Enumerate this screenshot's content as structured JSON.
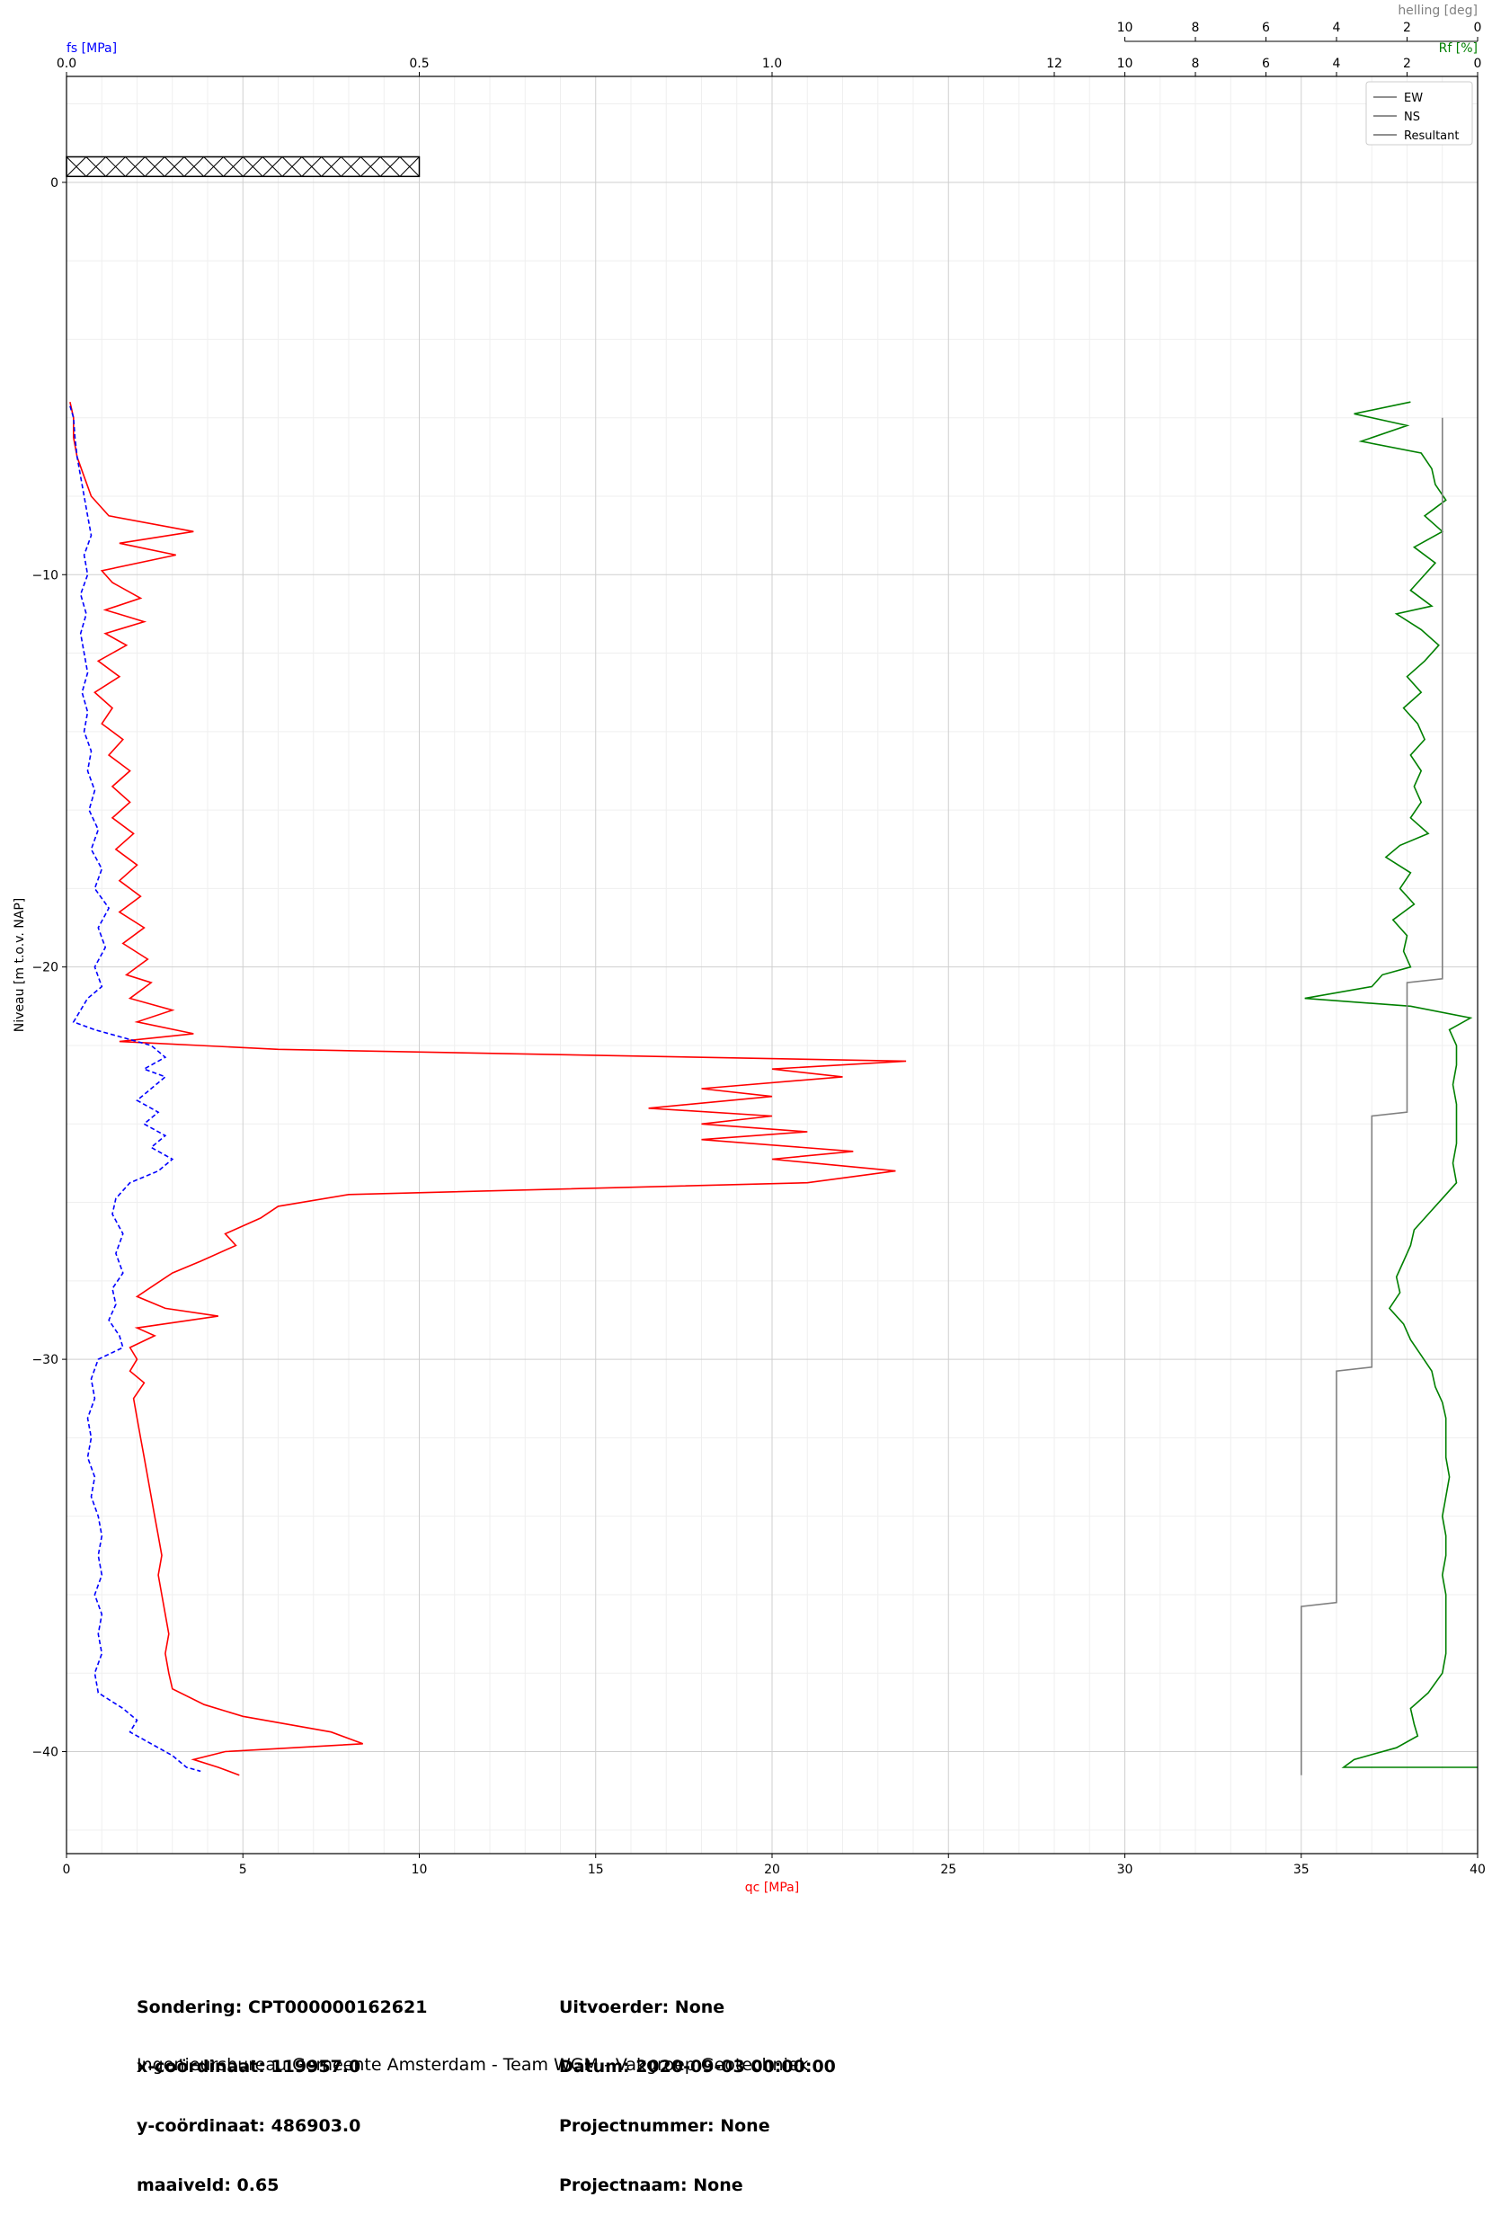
{
  "chart_data": {
    "type": "line",
    "ylabel": "Niveau [m t.o.v. NAP]",
    "ylim": [
      -42.6,
      2.7
    ],
    "yticks": [
      0,
      -10,
      -20,
      -30,
      -40
    ],
    "qc_axis": {
      "label": "qc [MPa]",
      "range": [
        0,
        40
      ],
      "ticks": [
        0,
        5,
        10,
        15,
        20,
        25,
        30,
        35,
        40
      ],
      "color": "#ff0000"
    },
    "fs_axis": {
      "label": "fs [MPa]",
      "range": [
        0,
        2.0
      ],
      "ticks": [
        0.0,
        0.5,
        1.0
      ],
      "tick_labels": [
        "0.0",
        "0.5",
        "1.0"
      ],
      "color": "#0000ff"
    },
    "rf_axis": {
      "label": "Rf [%]",
      "range": [
        40,
        0
      ],
      "ticks": [
        12,
        10,
        8,
        6,
        4,
        2,
        0
      ],
      "color": "#008000"
    },
    "helling_axis": {
      "label": "helling [deg]",
      "range": [
        10,
        0
      ],
      "ticks": [
        10,
        8,
        6,
        4,
        2,
        0
      ],
      "color": "#808080"
    },
    "legend": {
      "placement": "top-right",
      "entries": [
        "EW",
        "NS",
        "Resultant"
      ]
    },
    "grid": true,
    "maaiveld": 0.65,
    "series": [
      {
        "name": "qc",
        "color": "#ff0000",
        "style": "solid",
        "points": [
          [
            0.1,
            -5.6
          ],
          [
            0.2,
            -6.0
          ],
          [
            0.2,
            -6.5
          ],
          [
            0.3,
            -7.0
          ],
          [
            0.5,
            -7.5
          ],
          [
            0.7,
            -8.0
          ],
          [
            1.2,
            -8.5
          ],
          [
            3.6,
            -8.9
          ],
          [
            1.5,
            -9.2
          ],
          [
            3.1,
            -9.5
          ],
          [
            1.0,
            -9.9
          ],
          [
            1.3,
            -10.2
          ],
          [
            2.1,
            -10.6
          ],
          [
            1.1,
            -10.9
          ],
          [
            2.2,
            -11.2
          ],
          [
            1.1,
            -11.5
          ],
          [
            1.7,
            -11.8
          ],
          [
            0.9,
            -12.2
          ],
          [
            1.5,
            -12.6
          ],
          [
            0.8,
            -13.0
          ],
          [
            1.3,
            -13.4
          ],
          [
            1.0,
            -13.8
          ],
          [
            1.6,
            -14.2
          ],
          [
            1.2,
            -14.6
          ],
          [
            1.8,
            -15.0
          ],
          [
            1.3,
            -15.4
          ],
          [
            1.8,
            -15.8
          ],
          [
            1.3,
            -16.2
          ],
          [
            1.9,
            -16.6
          ],
          [
            1.4,
            -17.0
          ],
          [
            2.0,
            -17.4
          ],
          [
            1.5,
            -17.8
          ],
          [
            2.1,
            -18.2
          ],
          [
            1.5,
            -18.6
          ],
          [
            2.2,
            -19.0
          ],
          [
            1.6,
            -19.4
          ],
          [
            2.3,
            -19.8
          ],
          [
            1.7,
            -20.2
          ],
          [
            2.4,
            -20.4
          ],
          [
            1.8,
            -20.8
          ],
          [
            3.0,
            -21.1
          ],
          [
            2.0,
            -21.4
          ],
          [
            3.6,
            -21.7
          ],
          [
            1.5,
            -21.9
          ],
          [
            6.0,
            -22.1
          ],
          [
            23.8,
            -22.4
          ],
          [
            20.0,
            -22.6
          ],
          [
            22.0,
            -22.8
          ],
          [
            18.0,
            -23.1
          ],
          [
            20.0,
            -23.3
          ],
          [
            16.5,
            -23.6
          ],
          [
            20.0,
            -23.8
          ],
          [
            18.0,
            -24.0
          ],
          [
            21.0,
            -24.2
          ],
          [
            18.0,
            -24.4
          ],
          [
            22.3,
            -24.7
          ],
          [
            20.0,
            -24.9
          ],
          [
            23.5,
            -25.2
          ],
          [
            21.0,
            -25.5
          ],
          [
            8.0,
            -25.8
          ],
          [
            6.0,
            -26.1
          ],
          [
            5.5,
            -26.4
          ],
          [
            4.5,
            -26.8
          ],
          [
            4.8,
            -27.1
          ],
          [
            3.8,
            -27.5
          ],
          [
            3.0,
            -27.8
          ],
          [
            2.5,
            -28.1
          ],
          [
            2.0,
            -28.4
          ],
          [
            2.8,
            -28.7
          ],
          [
            4.3,
            -28.9
          ],
          [
            2.0,
            -29.2
          ],
          [
            2.5,
            -29.4
          ],
          [
            1.8,
            -29.7
          ],
          [
            2.0,
            -30.0
          ],
          [
            1.8,
            -30.3
          ],
          [
            2.2,
            -30.6
          ],
          [
            1.9,
            -31.0
          ],
          [
            2.0,
            -31.5
          ],
          [
            2.1,
            -32.0
          ],
          [
            2.2,
            -32.5
          ],
          [
            2.3,
            -33.0
          ],
          [
            2.4,
            -33.5
          ],
          [
            2.5,
            -34.0
          ],
          [
            2.6,
            -34.5
          ],
          [
            2.7,
            -35.0
          ],
          [
            2.6,
            -35.5
          ],
          [
            2.7,
            -36.0
          ],
          [
            2.8,
            -36.5
          ],
          [
            2.9,
            -37.0
          ],
          [
            2.8,
            -37.5
          ],
          [
            2.9,
            -38.0
          ],
          [
            3.0,
            -38.4
          ],
          [
            3.9,
            -38.8
          ],
          [
            5.0,
            -39.1
          ],
          [
            7.5,
            -39.5
          ],
          [
            8.4,
            -39.8
          ],
          [
            4.5,
            -40.0
          ],
          [
            3.6,
            -40.2
          ],
          [
            4.3,
            -40.4
          ],
          [
            4.9,
            -40.6
          ]
        ]
      },
      {
        "name": "fs",
        "color": "#0000ff",
        "style": "dashed",
        "points": [
          [
            0.005,
            -5.7
          ],
          [
            0.01,
            -6.0
          ],
          [
            0.012,
            -6.5
          ],
          [
            0.015,
            -7.0
          ],
          [
            0.02,
            -7.5
          ],
          [
            0.025,
            -8.0
          ],
          [
            0.03,
            -8.5
          ],
          [
            0.035,
            -9.0
          ],
          [
            0.025,
            -9.5
          ],
          [
            0.03,
            -10.0
          ],
          [
            0.02,
            -10.5
          ],
          [
            0.028,
            -11.0
          ],
          [
            0.02,
            -11.5
          ],
          [
            0.025,
            -12.0
          ],
          [
            0.03,
            -12.5
          ],
          [
            0.022,
            -13.0
          ],
          [
            0.03,
            -13.5
          ],
          [
            0.025,
            -14.0
          ],
          [
            0.035,
            -14.5
          ],
          [
            0.03,
            -15.0
          ],
          [
            0.04,
            -15.5
          ],
          [
            0.032,
            -16.0
          ],
          [
            0.045,
            -16.5
          ],
          [
            0.035,
            -17.0
          ],
          [
            0.05,
            -17.5
          ],
          [
            0.04,
            -18.0
          ],
          [
            0.06,
            -18.5
          ],
          [
            0.045,
            -19.0
          ],
          [
            0.055,
            -19.5
          ],
          [
            0.04,
            -20.0
          ],
          [
            0.05,
            -20.5
          ],
          [
            0.03,
            -20.8
          ],
          [
            0.02,
            -21.1
          ],
          [
            0.01,
            -21.4
          ],
          [
            0.04,
            -21.6
          ],
          [
            0.08,
            -21.8
          ],
          [
            0.12,
            -22.0
          ],
          [
            0.14,
            -22.3
          ],
          [
            0.11,
            -22.6
          ],
          [
            0.14,
            -22.8
          ],
          [
            0.12,
            -23.1
          ],
          [
            0.1,
            -23.4
          ],
          [
            0.13,
            -23.7
          ],
          [
            0.11,
            -24.0
          ],
          [
            0.14,
            -24.3
          ],
          [
            0.12,
            -24.6
          ],
          [
            0.15,
            -24.9
          ],
          [
            0.13,
            -25.2
          ],
          [
            0.09,
            -25.5
          ],
          [
            0.07,
            -25.9
          ],
          [
            0.065,
            -26.3
          ],
          [
            0.08,
            -26.8
          ],
          [
            0.07,
            -27.3
          ],
          [
            0.08,
            -27.8
          ],
          [
            0.065,
            -28.2
          ],
          [
            0.07,
            -28.6
          ],
          [
            0.06,
            -29.0
          ],
          [
            0.075,
            -29.4
          ],
          [
            0.08,
            -29.7
          ],
          [
            0.045,
            -30.0
          ],
          [
            0.035,
            -30.5
          ],
          [
            0.04,
            -31.0
          ],
          [
            0.03,
            -31.5
          ],
          [
            0.035,
            -32.0
          ],
          [
            0.03,
            -32.5
          ],
          [
            0.04,
            -33.0
          ],
          [
            0.035,
            -33.5
          ],
          [
            0.045,
            -34.0
          ],
          [
            0.05,
            -34.5
          ],
          [
            0.045,
            -35.0
          ],
          [
            0.05,
            -35.5
          ],
          [
            0.04,
            -36.0
          ],
          [
            0.05,
            -36.5
          ],
          [
            0.045,
            -37.0
          ],
          [
            0.05,
            -37.5
          ],
          [
            0.04,
            -38.0
          ],
          [
            0.045,
            -38.5
          ],
          [
            0.08,
            -38.9
          ],
          [
            0.1,
            -39.2
          ],
          [
            0.09,
            -39.5
          ],
          [
            0.12,
            -39.8
          ],
          [
            0.15,
            -40.1
          ],
          [
            0.17,
            -40.4
          ],
          [
            0.19,
            -40.5
          ]
        ]
      },
      {
        "name": "Rf",
        "color": "#008000",
        "style": "solid",
        "points": [
          [
            1.9,
            -5.6
          ],
          [
            3.5,
            -5.9
          ],
          [
            2.0,
            -6.2
          ],
          [
            3.3,
            -6.6
          ],
          [
            1.6,
            -6.9
          ],
          [
            1.3,
            -7.3
          ],
          [
            1.2,
            -7.7
          ],
          [
            0.9,
            -8.1
          ],
          [
            1.5,
            -8.5
          ],
          [
            1.0,
            -8.9
          ],
          [
            1.8,
            -9.3
          ],
          [
            1.2,
            -9.7
          ],
          [
            1.6,
            -10.1
          ],
          [
            1.9,
            -10.4
          ],
          [
            1.3,
            -10.8
          ],
          [
            2.3,
            -11.0
          ],
          [
            1.6,
            -11.4
          ],
          [
            1.1,
            -11.8
          ],
          [
            1.5,
            -12.2
          ],
          [
            2.0,
            -12.6
          ],
          [
            1.6,
            -13.0
          ],
          [
            2.1,
            -13.4
          ],
          [
            1.7,
            -13.8
          ],
          [
            1.5,
            -14.2
          ],
          [
            1.9,
            -14.6
          ],
          [
            1.6,
            -15.0
          ],
          [
            1.8,
            -15.4
          ],
          [
            1.6,
            -15.8
          ],
          [
            1.9,
            -16.2
          ],
          [
            1.4,
            -16.6
          ],
          [
            2.2,
            -16.9
          ],
          [
            2.6,
            -17.2
          ],
          [
            1.9,
            -17.6
          ],
          [
            2.2,
            -18.0
          ],
          [
            1.8,
            -18.4
          ],
          [
            2.4,
            -18.8
          ],
          [
            2.0,
            -19.2
          ],
          [
            2.1,
            -19.6
          ],
          [
            1.9,
            -20.0
          ],
          [
            2.7,
            -20.2
          ],
          [
            3.0,
            -20.5
          ],
          [
            4.9,
            -20.8
          ],
          [
            1.9,
            -21.0
          ],
          [
            0.2,
            -21.3
          ],
          [
            0.8,
            -21.6
          ],
          [
            0.6,
            -22.0
          ],
          [
            0.6,
            -22.5
          ],
          [
            0.7,
            -23.0
          ],
          [
            0.6,
            -23.5
          ],
          [
            0.6,
            -24.0
          ],
          [
            0.6,
            -24.5
          ],
          [
            0.7,
            -25.0
          ],
          [
            0.6,
            -25.5
          ],
          [
            1.0,
            -25.9
          ],
          [
            1.4,
            -26.3
          ],
          [
            1.8,
            -26.7
          ],
          [
            1.9,
            -27.1
          ],
          [
            2.1,
            -27.5
          ],
          [
            2.3,
            -27.9
          ],
          [
            2.2,
            -28.3
          ],
          [
            2.5,
            -28.7
          ],
          [
            2.1,
            -29.1
          ],
          [
            1.9,
            -29.5
          ],
          [
            1.6,
            -29.9
          ],
          [
            1.3,
            -30.3
          ],
          [
            1.2,
            -30.7
          ],
          [
            1.0,
            -31.1
          ],
          [
            0.9,
            -31.5
          ],
          [
            0.9,
            -32.0
          ],
          [
            0.9,
            -32.5
          ],
          [
            0.8,
            -33.0
          ],
          [
            0.9,
            -33.5
          ],
          [
            1.0,
            -34.0
          ],
          [
            0.9,
            -34.5
          ],
          [
            0.9,
            -35.0
          ],
          [
            1.0,
            -35.5
          ],
          [
            0.9,
            -36.0
          ],
          [
            0.9,
            -36.5
          ],
          [
            0.9,
            -37.0
          ],
          [
            0.9,
            -37.5
          ],
          [
            1.0,
            -38.0
          ],
          [
            1.4,
            -38.5
          ],
          [
            1.9,
            -38.9
          ],
          [
            1.8,
            -39.3
          ],
          [
            1.7,
            -39.6
          ],
          [
            2.3,
            -39.9
          ],
          [
            3.5,
            -40.2
          ],
          [
            3.8,
            -40.4
          ],
          [
            0.0,
            -40.4
          ]
        ]
      },
      {
        "name": "Resultant",
        "color": "#808080",
        "style": "solid",
        "points": [
          [
            1.0,
            -6.0
          ],
          [
            1.0,
            -6.4
          ],
          [
            1.0,
            -7.0
          ],
          [
            1.0,
            -8.0
          ],
          [
            1.0,
            -9.0
          ],
          [
            1.0,
            -10.0
          ],
          [
            1.0,
            -11.0
          ],
          [
            1.0,
            -12.5
          ],
          [
            1.0,
            -14.0
          ],
          [
            1.0,
            -16.0
          ],
          [
            1.0,
            -18.0
          ],
          [
            1.0,
            -20.3
          ],
          [
            2.0,
            -20.4
          ],
          [
            2.0,
            -23.7
          ],
          [
            3.0,
            -23.8
          ],
          [
            3.0,
            -29.0
          ],
          [
            3.0,
            -30.2
          ],
          [
            4.0,
            -30.3
          ],
          [
            4.0,
            -36.2
          ],
          [
            5.0,
            -36.3
          ],
          [
            5.0,
            -40.6
          ]
        ]
      }
    ]
  },
  "info": {
    "left": [
      "Sondering: CPT000000162621",
      "x-coördinaat: 119957.0",
      "y-coördinaat: 486903.0",
      "maaiveld: 0.65"
    ],
    "right": [
      "Uitvoerder: None",
      "Datum: 2020-09-03 00:00:00",
      "Projectnummer: None",
      "Projectnaam: None"
    ]
  },
  "footer": "Ingenieursbureau Gemeente Amsterdam - Team WGM - Vakgroep Geotechniek"
}
